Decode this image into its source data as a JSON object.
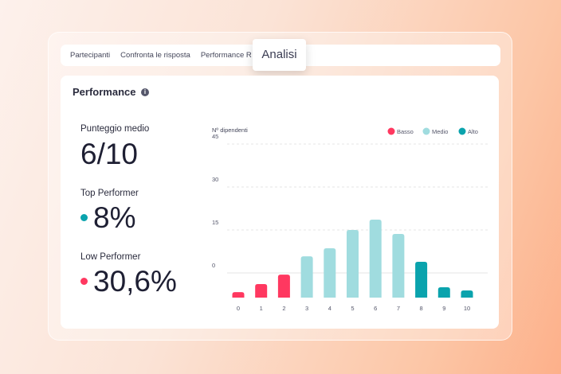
{
  "tabs": [
    "Partecipanti",
    "Confronta le risposta",
    "Performance R"
  ],
  "popup_tab": "Analisi",
  "card": {
    "title": "Performance",
    "info_icon": "i"
  },
  "stats": {
    "avg_label": "Punteggio medio",
    "avg_value": "6/10",
    "top_label": "Top Performer",
    "top_value": "8%",
    "low_label": "Low Performer",
    "low_value": "30,6%"
  },
  "colors": {
    "basso": "#ff3860",
    "medio": "#a0dcdf",
    "alto": "#0aa3ad"
  },
  "chart_data": {
    "type": "bar",
    "ylabel": "Nº dipendenti",
    "yticks": [
      45,
      30,
      15,
      0
    ],
    "ylim": [
      -8.6,
      45
    ],
    "categories": [
      "0",
      "1",
      "2",
      "3",
      "4",
      "5",
      "6",
      "7",
      "8",
      "9",
      "10"
    ],
    "values": [
      -6.7,
      -3.9,
      -0.6,
      5.8,
      8.6,
      15,
      18.6,
      13.6,
      3.9,
      -5,
      -6.1
    ],
    "groups": [
      "basso",
      "basso",
      "basso",
      "medio",
      "medio",
      "medio",
      "medio",
      "medio",
      "alto",
      "alto",
      "alto"
    ],
    "legend": [
      {
        "key": "basso",
        "label": "Basso"
      },
      {
        "key": "medio",
        "label": "Medio"
      },
      {
        "key": "alto",
        "label": "Alto"
      }
    ],
    "legend_position": "top-right"
  }
}
